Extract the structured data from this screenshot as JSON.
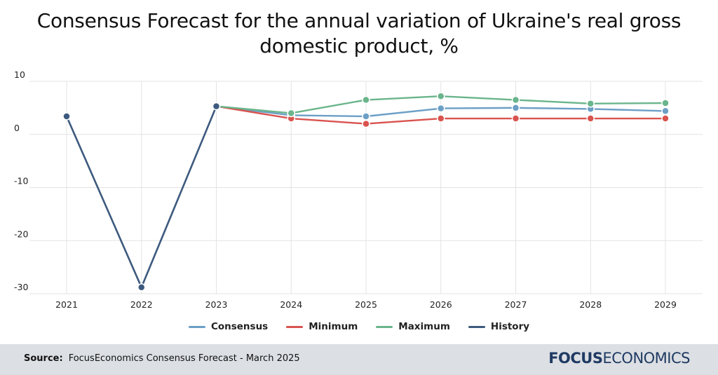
{
  "title_line1": "Consensus Forecast for the annual variation of Ukraine's real gross",
  "title_line2": "domestic product, %",
  "legend": {
    "consensus": "Consensus",
    "minimum": "Minimum",
    "maximum": "Maximum",
    "history": "History"
  },
  "footer": {
    "source_label": "Source:",
    "source_text": "FocusEconomics Consensus Forecast - March 2025",
    "logo_focus": "FOCUS",
    "logo_economics": "ECONOMICS"
  },
  "colors": {
    "consensus": "#6c9fc6",
    "minimum": "#d9534f",
    "maximum": "#6ab58c",
    "history": "#3d5a7e"
  },
  "chart_data": {
    "type": "line",
    "title": "Consensus Forecast for the annual variation of Ukraine's real gross domestic product, %",
    "categories": [
      "2021",
      "2022",
      "2023",
      "2024",
      "2025",
      "2026",
      "2027",
      "2028",
      "2029"
    ],
    "yticks": [
      10,
      0,
      -10,
      -20,
      -30
    ],
    "ylim": [
      -30,
      10
    ],
    "grid": true,
    "legend_position": "bottom",
    "series": [
      {
        "name": "History",
        "key": "history",
        "values": [
          3.4,
          -28.8,
          5.3,
          null,
          null,
          null,
          null,
          null,
          null
        ]
      },
      {
        "name": "Consensus",
        "key": "consensus",
        "values": [
          null,
          null,
          5.3,
          3.6,
          3.4,
          4.9,
          5.0,
          4.8,
          4.4
        ]
      },
      {
        "name": "Minimum",
        "key": "minimum",
        "values": [
          null,
          null,
          5.3,
          3.0,
          2.0,
          3.0,
          3.0,
          3.0,
          3.0
        ]
      },
      {
        "name": "Maximum",
        "key": "maximum",
        "values": [
          null,
          null,
          5.3,
          4.0,
          6.5,
          7.2,
          6.5,
          5.8,
          5.9
        ]
      }
    ]
  }
}
